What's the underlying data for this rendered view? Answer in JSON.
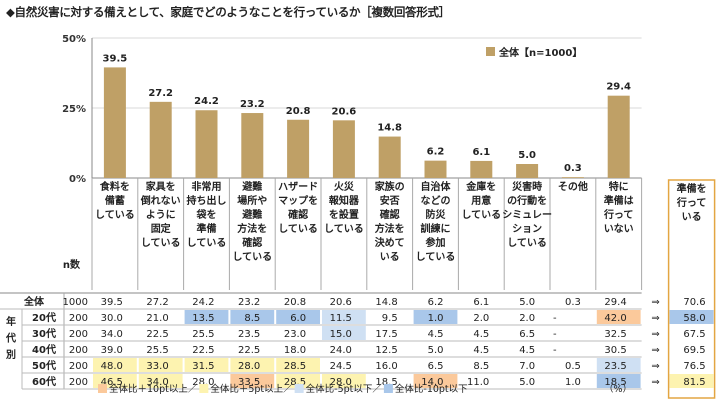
{
  "title": "◆自然災害に対する備えとして、家庭でどのようなことを行っているか［複数回答形式］",
  "chart_data": {
    "type": "bar",
    "categories": [
      "食料を\n備蓄\nしている",
      "家具を\n倒れない\nように\n固定\nしている",
      "非常用\n持ち出し\n袋を\n準備\nしている",
      "避難\n場所や\n避難\n方法を\n確認\nしている",
      "ハザード\nマップを\n確認\nしている",
      "火災\n報知器\nを設置\nしている",
      "家族の\n安否\n確認\n方法を\n決めて\nいる",
      "自治体\nなどの\n防災\n訓練に\n参加\nしている",
      "金庫を\n用意\nしている",
      "災害時\nの行動を\nシミュレー\nション\nしている",
      "その他",
      "特に\n準備は\n行って\nいない"
    ],
    "series": [
      {
        "name": "全体【n=1000】",
        "values": [
          39.5,
          27.2,
          24.2,
          23.2,
          20.8,
          20.6,
          14.8,
          6.2,
          6.1,
          5.0,
          0.3,
          29.4
        ]
      }
    ],
    "yticks": [
      "50%",
      "25%",
      "0%"
    ],
    "ylim": [
      0,
      50
    ],
    "bar_color": "#bfa066",
    "extra_column": {
      "label": "準備を\n行って\nいる",
      "values": [
        "70.6",
        "58.0",
        "67.5",
        "69.5",
        "76.5",
        "81.5"
      ]
    },
    "arrow": "⇒",
    "n_label": "n数",
    "row_header_group": "年\n代\n別",
    "rows": [
      {
        "label": "全体",
        "n": "1000",
        "values": [
          "39.5",
          "27.2",
          "24.2",
          "23.2",
          "20.8",
          "20.6",
          "14.8",
          "6.2",
          "6.1",
          "5.0",
          "0.3",
          "29.4"
        ]
      },
      {
        "label": "20代",
        "n": "200",
        "values": [
          "30.0",
          "21.0",
          "13.5",
          "8.5",
          "6.0",
          "11.5",
          "9.5",
          "1.0",
          "2.0",
          "2.0",
          "-",
          "42.0"
        ]
      },
      {
        "label": "30代",
        "n": "200",
        "values": [
          "34.0",
          "22.5",
          "25.5",
          "23.5",
          "23.0",
          "15.0",
          "17.5",
          "4.5",
          "4.5",
          "6.5",
          "-",
          "32.5"
        ]
      },
      {
        "label": "40代",
        "n": "200",
        "values": [
          "39.0",
          "25.5",
          "22.5",
          "22.5",
          "18.0",
          "24.0",
          "12.5",
          "5.0",
          "4.5",
          "4.5",
          "-",
          "30.5"
        ]
      },
      {
        "label": "50代",
        "n": "200",
        "values": [
          "48.0",
          "33.0",
          "31.5",
          "28.0",
          "28.5",
          "24.5",
          "16.0",
          "6.5",
          "8.5",
          "7.0",
          "0.5",
          "23.5"
        ]
      },
      {
        "label": "60代",
        "n": "200",
        "values": [
          "46.5",
          "34.0",
          "28.0",
          "33.5",
          "28.5",
          "28.0",
          "18.5",
          "14.0",
          "11.0",
          "5.0",
          "1.0",
          "18.5"
        ]
      }
    ],
    "highlight_codes": [
      [
        0,
        0,
        0,
        0,
        0,
        0,
        0,
        0,
        0,
        0,
        0,
        0,
        0
      ],
      [
        0,
        0,
        4,
        4,
        4,
        3,
        0,
        4,
        0,
        0,
        0,
        1,
        4
      ],
      [
        0,
        0,
        0,
        0,
        0,
        3,
        0,
        0,
        0,
        0,
        0,
        0,
        0
      ],
      [
        0,
        0,
        0,
        0,
        0,
        0,
        0,
        0,
        0,
        0,
        0,
        0,
        0
      ],
      [
        2,
        2,
        2,
        2,
        2,
        0,
        0,
        0,
        0,
        0,
        0,
        3,
        0
      ],
      [
        2,
        2,
        0,
        1,
        2,
        2,
        0,
        1,
        0,
        0,
        0,
        4,
        2
      ]
    ],
    "highlight_colors": {
      "1": "#fbc99b",
      "2": "#fdf3b0",
      "3": "#cfe0f3",
      "4": "#a9c7ea"
    },
    "footnote": [
      {
        "code": "1",
        "text": "全体比＋10pt以上／"
      },
      {
        "code": "2",
        "text": "全体比＋5pt以上／"
      },
      {
        "code": "3",
        "text": "全体比-5pt以下／"
      },
      {
        "code": "4",
        "text": "全体比-10pt以下"
      }
    ],
    "unit": "（%）"
  }
}
